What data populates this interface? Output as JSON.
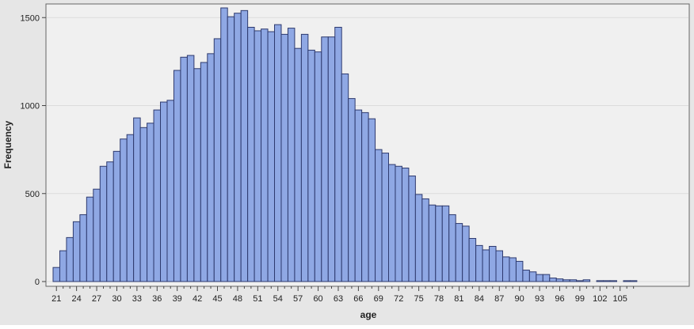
{
  "chart_data": {
    "type": "bar",
    "title": "",
    "xlabel": "age",
    "ylabel": "Frequency",
    "ylim": [
      0,
      1560
    ],
    "xlim": [
      20,
      108
    ],
    "grid": true,
    "x_tick_labels": [
      "21",
      "24",
      "27",
      "30",
      "33",
      "36",
      "39",
      "42",
      "45",
      "48",
      "51",
      "54",
      "57",
      "60",
      "63",
      "66",
      "69",
      "72",
      "75",
      "78",
      "81",
      "84",
      "87",
      "90",
      "93",
      "96",
      "99",
      "102",
      "105"
    ],
    "y_tick_labels": [
      "0",
      "500",
      "1000",
      "1500"
    ],
    "x_ticks": [
      21,
      24,
      27,
      30,
      33,
      36,
      39,
      42,
      45,
      48,
      51,
      54,
      57,
      60,
      63,
      66,
      69,
      72,
      75,
      78,
      81,
      84,
      87,
      90,
      93,
      96,
      99,
      102,
      105
    ],
    "y_ticks": [
      0,
      500,
      1000,
      1500
    ],
    "categories": [
      21,
      22,
      23,
      24,
      25,
      26,
      27,
      28,
      29,
      30,
      31,
      32,
      33,
      34,
      35,
      36,
      37,
      38,
      39,
      40,
      41,
      42,
      43,
      44,
      45,
      46,
      47,
      48,
      49,
      50,
      51,
      52,
      53,
      54,
      55,
      56,
      57,
      58,
      59,
      60,
      61,
      62,
      63,
      64,
      65,
      66,
      67,
      68,
      69,
      70,
      71,
      72,
      73,
      74,
      75,
      76,
      77,
      78,
      79,
      80,
      81,
      82,
      83,
      84,
      85,
      86,
      87,
      88,
      89,
      90,
      91,
      92,
      93,
      94,
      95,
      96,
      97,
      98,
      99,
      100,
      101,
      102,
      103,
      104,
      105,
      106,
      107
    ],
    "values": [
      80,
      175,
      250,
      340,
      380,
      480,
      525,
      655,
      680,
      740,
      810,
      835,
      930,
      875,
      900,
      975,
      1020,
      1030,
      1200,
      1275,
      1285,
      1210,
      1245,
      1295,
      1380,
      1555,
      1505,
      1525,
      1540,
      1445,
      1425,
      1435,
      1420,
      1460,
      1405,
      1440,
      1325,
      1405,
      1315,
      1305,
      1390,
      1390,
      1445,
      1180,
      1040,
      975,
      960,
      925,
      750,
      730,
      665,
      655,
      645,
      600,
      495,
      470,
      435,
      430,
      430,
      380,
      330,
      315,
      245,
      205,
      180,
      200,
      175,
      140,
      135,
      115,
      65,
      55,
      40,
      40,
      20,
      15,
      10,
      10,
      5,
      10,
      0,
      5,
      5,
      5,
      0,
      5,
      5
    ]
  }
}
